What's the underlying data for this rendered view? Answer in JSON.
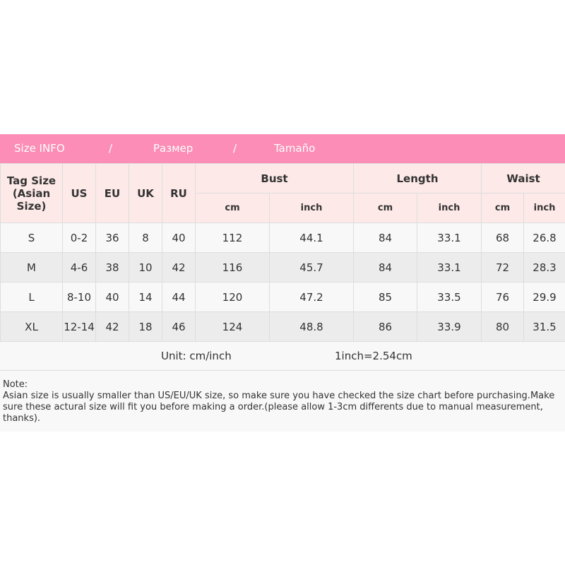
{
  "title": {
    "en": "Size INFO",
    "sep": "/",
    "ru": "Размер",
    "es": "Tamaño"
  },
  "headers": {
    "tag": "Tag Size (Asian Size)",
    "us": "US",
    "eu": "EU",
    "uk": "UK",
    "ru": "RU",
    "bust": "Bust",
    "length": "Length",
    "waist": "Waist",
    "cm": "cm",
    "inch": "inch"
  },
  "rows": [
    [
      "S",
      "0-2",
      "36",
      "8",
      "40",
      "112",
      "44.1",
      "84",
      "33.1",
      "68",
      "26.8"
    ],
    [
      "M",
      "4-6",
      "38",
      "10",
      "42",
      "116",
      "45.7",
      "84",
      "33.1",
      "72",
      "28.3"
    ],
    [
      "L",
      "8-10",
      "40",
      "14",
      "44",
      "120",
      "47.2",
      "85",
      "33.5",
      "76",
      "29.9"
    ],
    [
      "XL",
      "12-14",
      "42",
      "18",
      "46",
      "124",
      "48.8",
      "86",
      "33.9",
      "80",
      "31.5"
    ]
  ],
  "unit": "Unit: cm/inch",
  "conversion": "1inch=2.54cm",
  "note": {
    "label": "Note:",
    "text": "Asian size is usually smaller than US/EU/UK size, so make sure you have checked the size chart before purchasing.Make sure these actural size will fit you before making a order.(please allow 1-3cm differents due to manual measurement, thanks)."
  },
  "colors": {
    "banner": "#fb8db6",
    "header_bg": "#fde9e8"
  }
}
